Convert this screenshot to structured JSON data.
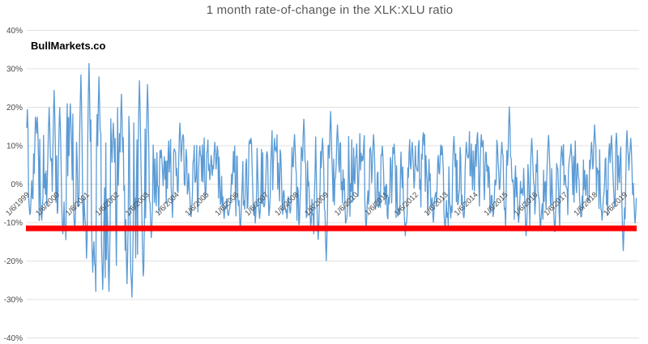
{
  "chart_data": {
    "type": "line",
    "title": "1 month rate-of-change in the XLK:XLU ratio",
    "watermark": "BullMarkets.co",
    "xlabel": "",
    "ylabel": "",
    "grid": true,
    "legend": false,
    "ylim": [
      -40,
      40
    ],
    "x_range_years": [
      1999.0,
      2019.41
    ],
    "y_ticks": [
      {
        "label": "40%",
        "value": 40
      },
      {
        "label": "30%",
        "value": 30
      },
      {
        "label": "20%",
        "value": 20
      },
      {
        "label": "10%",
        "value": 10
      },
      {
        "label": "0%",
        "value": 0
      },
      {
        "label": "-10%",
        "value": -10
      },
      {
        "label": "-20%",
        "value": -20
      },
      {
        "label": "-30%",
        "value": -30
      },
      {
        "label": "-40%",
        "value": -40
      }
    ],
    "x_ticks": [
      {
        "label": "1/6/1999",
        "year": 1999
      },
      {
        "label": "1/6/2000",
        "year": 2000
      },
      {
        "label": "1/6/2001",
        "year": 2001
      },
      {
        "label": "1/6/2002",
        "year": 2002
      },
      {
        "label": "1/6/2003",
        "year": 2003
      },
      {
        "label": "1/6/2004",
        "year": 2004
      },
      {
        "label": "1/6/2005",
        "year": 2005
      },
      {
        "label": "1/6/2006",
        "year": 2006
      },
      {
        "label": "1/6/2007",
        "year": 2007
      },
      {
        "label": "1/6/2008",
        "year": 2008
      },
      {
        "label": "1/6/2009",
        "year": 2009
      },
      {
        "label": "1/6/2010",
        "year": 2010
      },
      {
        "label": "1/6/2011",
        "year": 2011
      },
      {
        "label": "1/6/2012",
        "year": 2012
      },
      {
        "label": "1/6/2013",
        "year": 2013
      },
      {
        "label": "1/6/2014",
        "year": 2014
      },
      {
        "label": "1/6/2015",
        "year": 2015
      },
      {
        "label": "1/6/2016",
        "year": 2016
      },
      {
        "label": "1/6/2017",
        "year": 2017
      },
      {
        "label": "1/6/2018",
        "year": 2018
      },
      {
        "label": "1/6/2019",
        "year": 2019
      }
    ],
    "threshold_line": {
      "value": -11.5,
      "color": "#FF0000",
      "thickness_px": 7
    },
    "colors": {
      "series": "#5B9BD5",
      "title": "#595959",
      "axis_labels": "#4a4a4a",
      "gridline": "#E0E0E0",
      "background": "#FFFFFF"
    },
    "series": [
      {
        "name": "XLK:XLU 1-month rate of change",
        "color": "#5B9BD5",
        "points_per_year": 48,
        "seed": 20190106,
        "smoothing": 0.35,
        "gain": 0.95,
        "start_value": 15,
        "envelope": [
          {
            "year": 1999,
            "hi": 16,
            "lo": -9
          },
          {
            "year": 2000,
            "hi": 19,
            "lo": -13
          },
          {
            "year": 2001,
            "hi": 24,
            "lo": -26
          },
          {
            "year": 2002,
            "hi": 23,
            "lo": -26
          },
          {
            "year": 2003,
            "hi": 11,
            "lo": -9
          },
          {
            "year": 2004,
            "hi": 11,
            "lo": -8
          },
          {
            "year": 2005,
            "hi": 10,
            "lo": -8
          },
          {
            "year": 2006,
            "hi": 11,
            "lo": -9
          },
          {
            "year": 2007,
            "hi": 12,
            "lo": -8
          },
          {
            "year": 2008,
            "hi": 13,
            "lo": -11
          },
          {
            "year": 2009,
            "hi": 13,
            "lo": -10
          },
          {
            "year": 2010,
            "hi": 12,
            "lo": -9
          },
          {
            "year": 2011,
            "hi": 10,
            "lo": -9
          },
          {
            "year": 2012,
            "hi": 11,
            "lo": -9
          },
          {
            "year": 2013,
            "hi": 12,
            "lo": -9
          },
          {
            "year": 2014,
            "hi": 12,
            "lo": -8
          },
          {
            "year": 2015,
            "hi": 11,
            "lo": -10
          },
          {
            "year": 2016,
            "hi": 11,
            "lo": -9
          },
          {
            "year": 2017,
            "hi": 10,
            "lo": -8
          },
          {
            "year": 2018,
            "hi": 13,
            "lo": -9
          },
          {
            "year": 2019,
            "hi": 12,
            "lo": -10
          }
        ],
        "spikes": [
          {
            "x": 1999.02,
            "v": 19.5
          },
          {
            "x": 1999.1,
            "v": -8
          },
          {
            "x": 1999.35,
            "v": 17.5
          },
          {
            "x": 1999.5,
            "v": -9.5
          },
          {
            "x": 1999.75,
            "v": 20
          },
          {
            "x": 1999.92,
            "v": 24.5
          },
          {
            "x": 2000.1,
            "v": 20
          },
          {
            "x": 2000.2,
            "v": -13
          },
          {
            "x": 2000.45,
            "v": 21
          },
          {
            "x": 2000.6,
            "v": -12
          },
          {
            "x": 2000.82,
            "v": 28.5
          },
          {
            "x": 2000.95,
            "v": -10
          },
          {
            "x": 2001.09,
            "v": 31.5
          },
          {
            "x": 2001.2,
            "v": -23
          },
          {
            "x": 2001.41,
            "v": 28
          },
          {
            "x": 2001.55,
            "v": -27.5
          },
          {
            "x": 2001.75,
            "v": -28
          },
          {
            "x": 2001.9,
            "v": 16
          },
          {
            "x": 2002.17,
            "v": 23.5
          },
          {
            "x": 2002.35,
            "v": -26
          },
          {
            "x": 2002.52,
            "v": -29.5
          },
          {
            "x": 2002.77,
            "v": 27
          },
          {
            "x": 2002.9,
            "v": -24
          },
          {
            "x": 2003.05,
            "v": 26
          },
          {
            "x": 2003.17,
            "v": -14
          },
          {
            "x": 2003.5,
            "v": 9
          },
          {
            "x": 2004.12,
            "v": 16
          },
          {
            "x": 2004.5,
            "v": -8.5
          },
          {
            "x": 2004.8,
            "v": 10
          },
          {
            "x": 2005.3,
            "v": 11
          },
          {
            "x": 2005.6,
            "v": -9
          },
          {
            "x": 2006.15,
            "v": -12
          },
          {
            "x": 2006.5,
            "v": 12
          },
          {
            "x": 2006.8,
            "v": -9
          },
          {
            "x": 2007.3,
            "v": 12
          },
          {
            "x": 2007.7,
            "v": -9
          },
          {
            "x": 2007.95,
            "v": 13
          },
          {
            "x": 2008.27,
            "v": 17
          },
          {
            "x": 2008.5,
            "v": -11
          },
          {
            "x": 2008.76,
            "v": -14.5
          },
          {
            "x": 2008.9,
            "v": 12
          },
          {
            "x": 2009.03,
            "v": -20
          },
          {
            "x": 2009.16,
            "v": 19
          },
          {
            "x": 2009.4,
            "v": 15.5
          },
          {
            "x": 2009.7,
            "v": -9
          },
          {
            "x": 2010.35,
            "v": -11.8
          },
          {
            "x": 2010.6,
            "v": 13
          },
          {
            "x": 2010.9,
            "v": 10
          },
          {
            "x": 2011.3,
            "v": 10.5
          },
          {
            "x": 2011.66,
            "v": -13.5
          },
          {
            "x": 2011.9,
            "v": 11
          },
          {
            "x": 2012.28,
            "v": 13.5
          },
          {
            "x": 2012.6,
            "v": -10
          },
          {
            "x": 2012.9,
            "v": 10
          },
          {
            "x": 2013.0,
            "v": -11.8
          },
          {
            "x": 2013.3,
            "v": 12.5
          },
          {
            "x": 2013.7,
            "v": 11
          },
          {
            "x": 2014.2,
            "v": 13
          },
          {
            "x": 2014.6,
            "v": -8.5
          },
          {
            "x": 2014.9,
            "v": 11
          },
          {
            "x": 2015.15,
            "v": 20.2
          },
          {
            "x": 2015.45,
            "v": -10
          },
          {
            "x": 2015.7,
            "v": -13.5
          },
          {
            "x": 2015.9,
            "v": 12
          },
          {
            "x": 2016.18,
            "v": -12
          },
          {
            "x": 2016.45,
            "v": 12.8
          },
          {
            "x": 2016.66,
            "v": -12.5
          },
          {
            "x": 2016.9,
            "v": 10
          },
          {
            "x": 2017.2,
            "v": 10.5
          },
          {
            "x": 2017.55,
            "v": -8.5
          },
          {
            "x": 2017.9,
            "v": 11
          },
          {
            "x": 2018.0,
            "v": 15.5
          },
          {
            "x": 2018.25,
            "v": -9.5
          },
          {
            "x": 2018.57,
            "v": 12.7
          },
          {
            "x": 2018.95,
            "v": -17.4
          },
          {
            "x": 2019.1,
            "v": 10
          },
          {
            "x": 2019.2,
            "v": 12
          },
          {
            "x": 2019.35,
            "v": -10.2
          }
        ]
      }
    ]
  }
}
